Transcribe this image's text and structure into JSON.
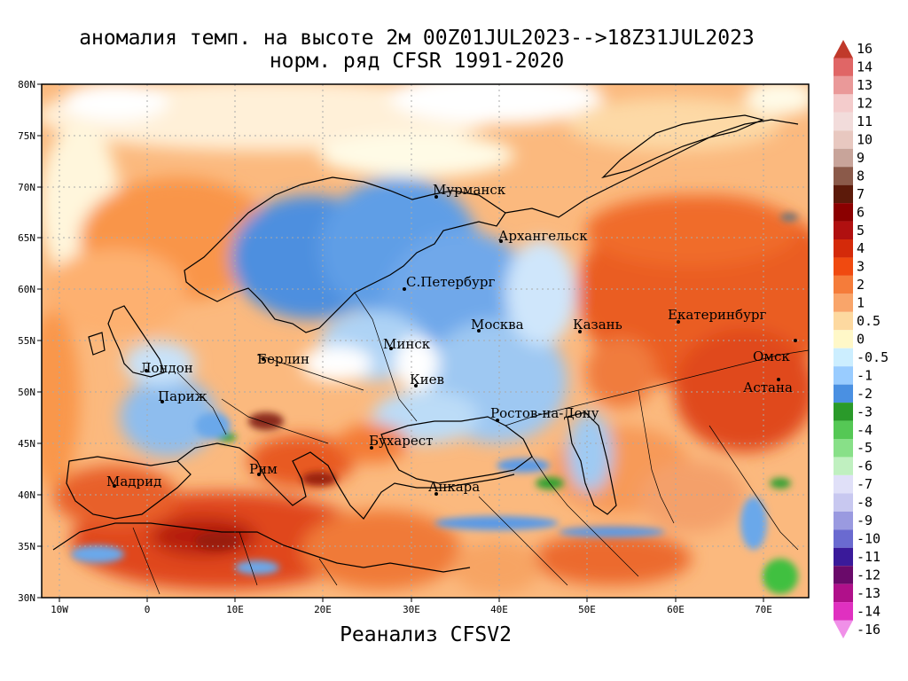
{
  "title_line1": "аномалия темп. на высоте 2м 00Z01JUL2023-->18Z31JUL2023",
  "title_line2": "норм. ряд CFSR 1991-2020",
  "bottom_label": "Реанализ CFSV2",
  "lat_labels": [
    "80N",
    "75N",
    "70N",
    "65N",
    "60N",
    "55N",
    "50N",
    "45N",
    "40N",
    "35N",
    "30N"
  ],
  "lon_labels": [
    "10W",
    "0",
    "10E",
    "20E",
    "30E",
    "40E",
    "50E",
    "60E",
    "70E"
  ],
  "cities": [
    {
      "name": "Мурманск"
    },
    {
      "name": "Архангельск"
    },
    {
      "name": "С.Петербург"
    },
    {
      "name": "Москва"
    },
    {
      "name": "Казань"
    },
    {
      "name": "Екатеринбург"
    },
    {
      "name": "Минск"
    },
    {
      "name": "Берлин"
    },
    {
      "name": "Лондон"
    },
    {
      "name": "Париж"
    },
    {
      "name": "Киев"
    },
    {
      "name": "Омск"
    },
    {
      "name": "Астана"
    },
    {
      "name": "Ростов-на-Дону"
    },
    {
      "name": "Бухарест"
    },
    {
      "name": "Рим"
    },
    {
      "name": "Мадрид"
    },
    {
      "name": "Анкара"
    }
  ],
  "colorbar": {
    "labels": [
      "16",
      "14",
      "13",
      "12",
      "11",
      "10",
      "9",
      "8",
      "7",
      "6",
      "5",
      "4",
      "3",
      "2",
      "1",
      "0.5",
      "0",
      "-0.5",
      "-1",
      "-2",
      "-3",
      "-4",
      "-5",
      "-6",
      "-7",
      "-8",
      "-9",
      "-10",
      "-11",
      "-12",
      "-13",
      "-14",
      "-16"
    ],
    "colors": [
      "#c0392b",
      "#e06666",
      "#ea9999",
      "#f4cccc",
      "#f2dcdb",
      "#e8c8c0",
      "#c8a49a",
      "#8b5a4a",
      "#5c1a0a",
      "#8b0000",
      "#b01010",
      "#d42a0a",
      "#f04a10",
      "#f57c3a",
      "#f9a56a",
      "#fdd9a0",
      "#fff8c8",
      "#cceeff",
      "#99ccff",
      "#4a90e2",
      "#2a9a2a",
      "#55c855",
      "#88e088",
      "#c0f0c0",
      "#e0e0f8",
      "#c8c8f0",
      "#9a9ae0",
      "#6a6ad0",
      "#3a1a9a",
      "#6a0a6a",
      "#b0108a",
      "#e030c0",
      "#f090e8"
    ]
  },
  "colors": {
    "ocean_warm": "#fbb77a",
    "cold_blue": "#5b9be0",
    "hot_red": "#e0451a"
  }
}
